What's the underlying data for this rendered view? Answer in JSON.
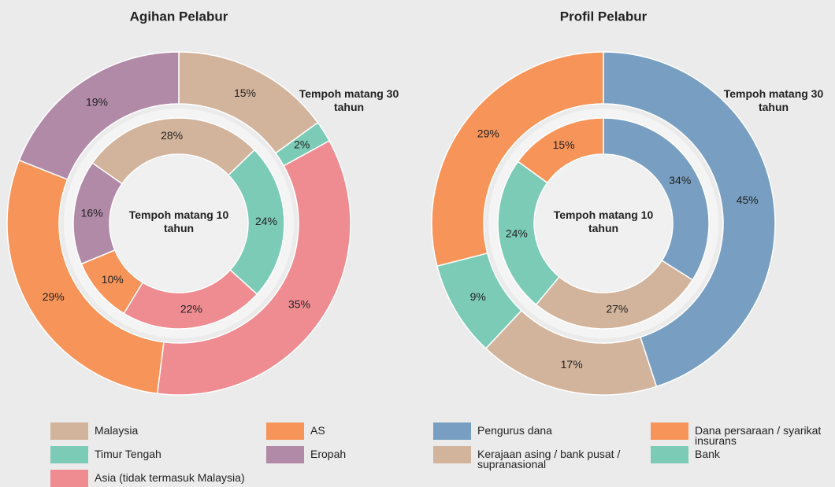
{
  "chart_data": [
    {
      "type": "donut",
      "title": "Agihan Pelabur",
      "categories": [
        "Malaysia",
        "Timur Tengah",
        "Asia (tidak termasuk Malaysia)",
        "AS",
        "Eropah"
      ],
      "colors": [
        "#d2b49c",
        "#7ccbb7",
        "#ee8c92",
        "#f79459",
        "#b18aa8"
      ],
      "series": [
        {
          "name": "Tempoh matang 10 tahun",
          "values": [
            28,
            24,
            22,
            10,
            16
          ],
          "value_labels": [
            "28%",
            "24%",
            "22%",
            "10%",
            "16%"
          ]
        },
        {
          "name": "Tempoh matang 30 tahun",
          "values": [
            15,
            2,
            35,
            29,
            19
          ],
          "value_labels": [
            "15%",
            "2%",
            "35%",
            "29%",
            "19%"
          ]
        }
      ]
    },
    {
      "type": "donut",
      "title": "Profil Pelabur",
      "categories": [
        "Pengurus dana",
        "Kerajaan asing / bank pusat / supranasional",
        "Bank",
        "Dana persaraan / syarikat insurans"
      ],
      "colors": [
        "#789fc1",
        "#d2b49c",
        "#7ccbb7",
        "#f79459"
      ],
      "series": [
        {
          "name": "Tempoh matang 10 tahun",
          "values": [
            34,
            27,
            24,
            15
          ],
          "value_labels": [
            "34%",
            "27%",
            "24%",
            "15%"
          ]
        },
        {
          "name": "Tempoh matang 30 tahun",
          "values": [
            45,
            17,
            9,
            29
          ],
          "value_labels": [
            "45%",
            "17%",
            "9%",
            "29%"
          ]
        }
      ]
    }
  ]
}
